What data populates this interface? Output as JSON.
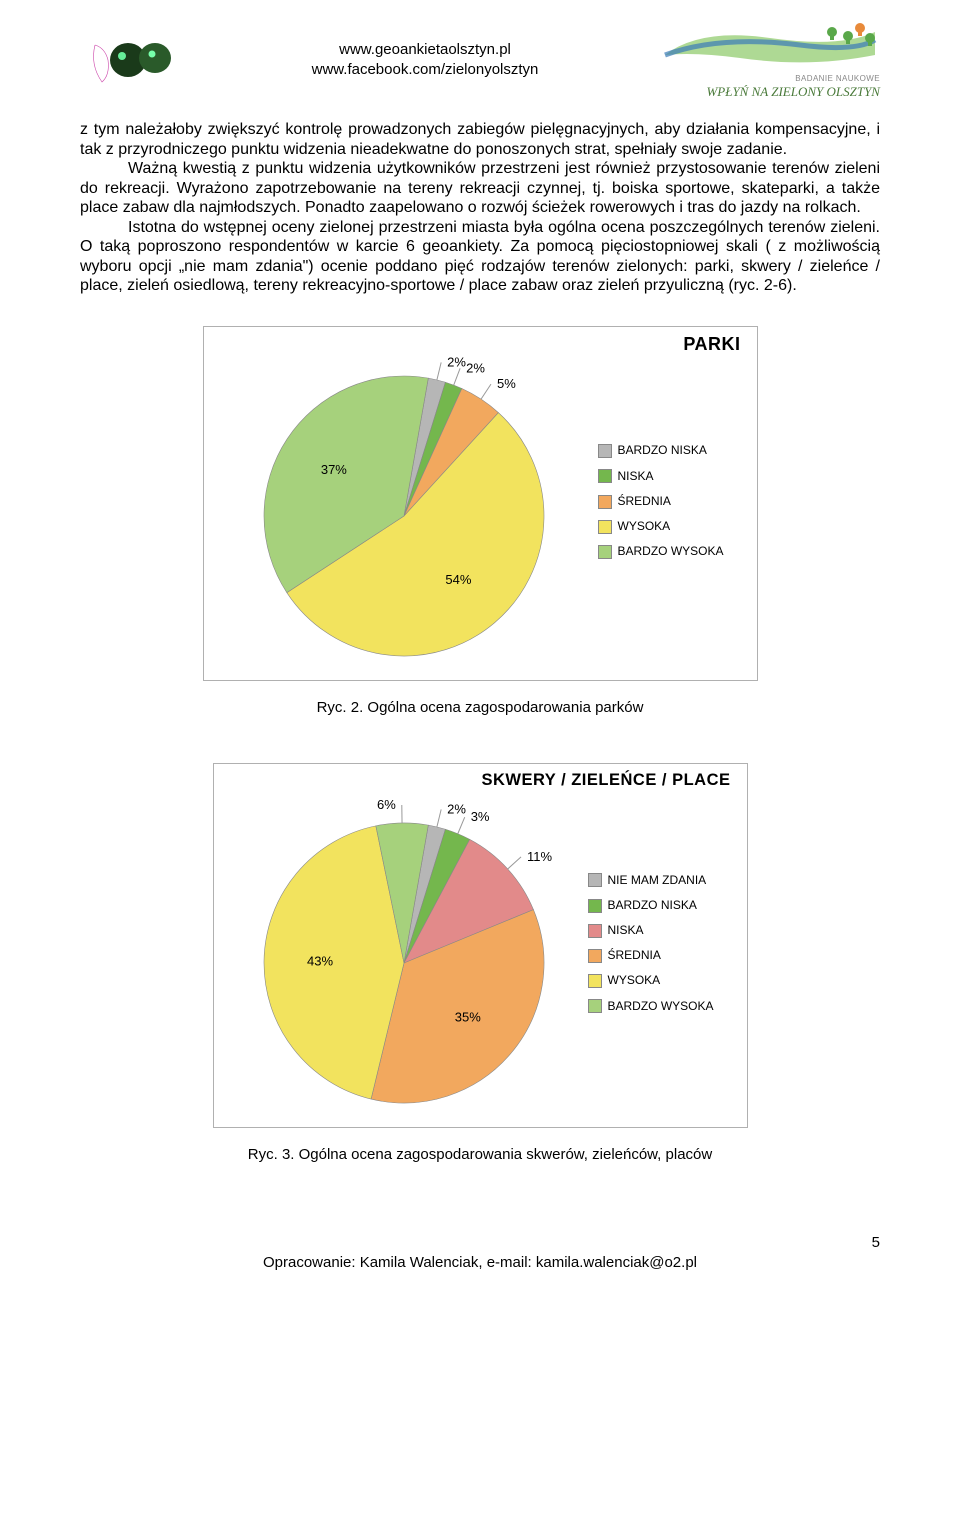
{
  "header": {
    "url1": "www.geoankietaolsztyn.pl",
    "url2": "www.facebook.com/zielonyolsztyn",
    "logo_right_main": "WPŁYŃ NA ZIELONY OLSZTYN",
    "logo_right_sub": "BADANIE NAUKOWE"
  },
  "body": {
    "p1": "z tym należałoby zwiększyć kontrolę prowadzonych zabiegów pielęgnacyjnych, aby działania kompensacyjne, i tak z przyrodniczego punktu widzenia nieadekwatne do ponoszonych strat, spełniały swoje zadanie.",
    "p2": "Ważną kwestią z punktu widzenia użytkowników przestrzeni jest również przystosowanie terenów zieleni do rekreacji. Wyrażono zapotrzebowanie na tereny rekreacji czynnej, tj. boiska sportowe, skateparki, a także place zabaw dla najmłodszych. Ponadto zaapelowano o rozwój ścieżek rowerowych i tras do jazdy na rolkach.",
    "p3": "Istotna do wstępnej oceny zielonej przestrzeni miasta była ogólna ocena poszczególnych terenów zieleni. O taką poproszono respondentów w karcie 6 geoankiety. Za pomocą pięciostopniowej skali ( z możliwością wyboru opcji „nie mam zdania\") ocenie poddano pięć rodzajów terenów zielonych: parki, skwery / zieleńce / place, zieleń osiedlową, tereny rekreacyjno-sportowe / place zabaw oraz zieleń przyuliczną (ryc. 2-6)."
  },
  "chart1": {
    "type": "pie",
    "title": "PARKI",
    "caption": "Ryc. 2. Ogólna ocena zagospodarowania parków",
    "background_color": "#ffffff",
    "border_color": "#b0b0b0",
    "label_fontsize": 13,
    "legend_fontsize": 12,
    "title_fontsize": 18,
    "pie_radius": 140,
    "start_angle_deg": -80,
    "slices": [
      {
        "label": "BARDZO NISKA",
        "value": 2,
        "color": "#b6b6b6",
        "show_pct": "2%"
      },
      {
        "label": "NISKA",
        "value": 2,
        "color": "#74b74d",
        "show_pct": "2%"
      },
      {
        "label": "ŚREDNIA",
        "value": 5,
        "color": "#f2a85e",
        "show_pct": "5%"
      },
      {
        "label": "WYSOKA",
        "value": 54,
        "color": "#f2e35e",
        "show_pct": "54%"
      },
      {
        "label": "BARDZO WYSOKA",
        "value": 37,
        "color": "#a6d17c",
        "show_pct": "37%"
      }
    ]
  },
  "chart2": {
    "type": "pie",
    "title": "SKWERY / ZIELEŃCE / PLACE",
    "caption": "Ryc. 3. Ogólna ocena zagospodarowania skwerów, zieleńców, placów",
    "background_color": "#ffffff",
    "border_color": "#b0b0b0",
    "label_fontsize": 13,
    "legend_fontsize": 12,
    "title_fontsize": 18,
    "pie_radius": 140,
    "start_angle_deg": -80,
    "slices": [
      {
        "label": "NIE MAM ZDANIA",
        "value": 2,
        "color": "#b6b6b6",
        "show_pct": "2%"
      },
      {
        "label": "BARDZO NISKA",
        "value": 3,
        "color": "#74b74d",
        "show_pct": "3%"
      },
      {
        "label": "NISKA",
        "value": 11,
        "color": "#e28a8a",
        "show_pct": "11%"
      },
      {
        "label": "ŚREDNIA",
        "value": 35,
        "color": "#f2a85e",
        "show_pct": "35%"
      },
      {
        "label": "WYSOKA",
        "value": 43,
        "color": "#f2e35e",
        "show_pct": "43%"
      },
      {
        "label": "BARDZO WYSOKA",
        "value": 6,
        "color": "#a6d17c",
        "show_pct": "6%"
      }
    ]
  },
  "footer": {
    "text": "Opracowanie: Kamila Walenciak, e-mail: kamila.walenciak@o2.pl",
    "page_number": "5"
  }
}
